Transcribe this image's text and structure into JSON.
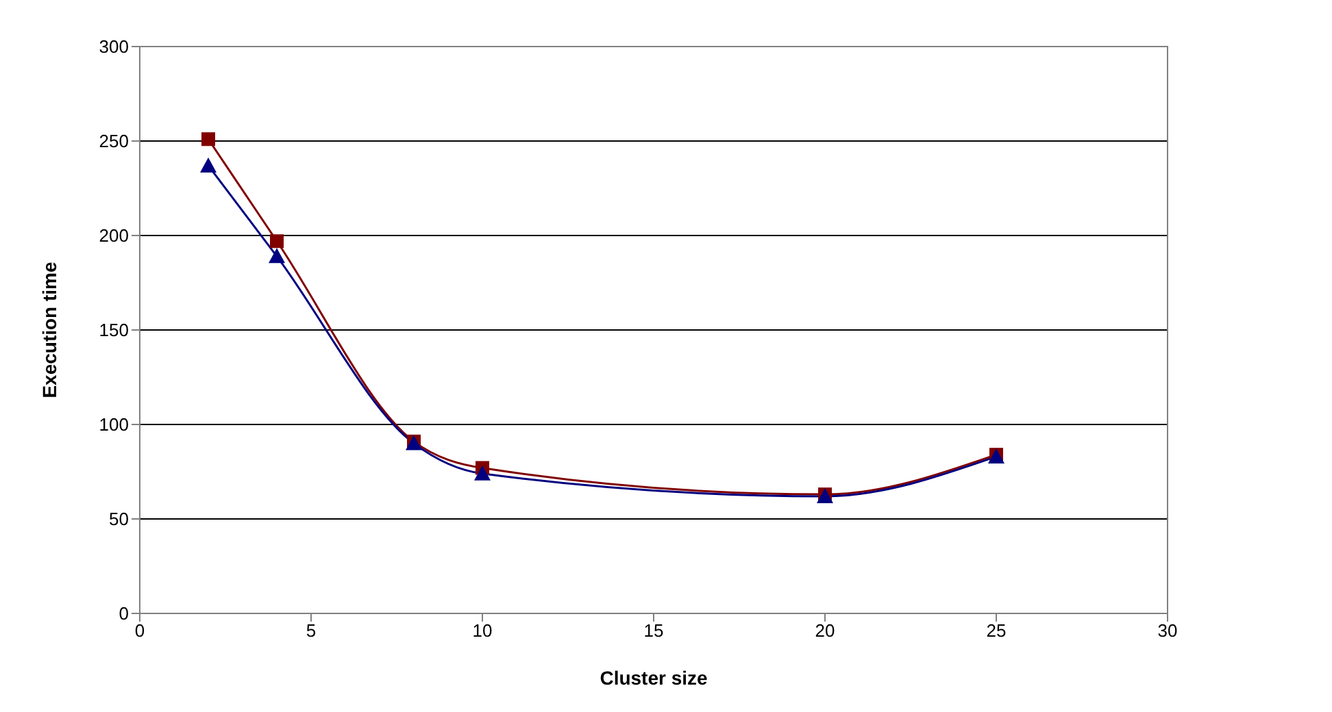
{
  "chart_data": {
    "type": "line",
    "xlabel": "Cluster size",
    "ylabel": "Execution time",
    "x": [
      2,
      4,
      8,
      10,
      20,
      25
    ],
    "series": [
      {
        "color": "#000080",
        "marker": "triangle",
        "values": [
          237,
          189,
          90,
          74,
          62,
          83
        ]
      },
      {
        "color": "#800000",
        "marker": "square",
        "values": [
          251,
          197,
          91,
          77,
          63,
          84
        ]
      }
    ],
    "xlim": [
      0,
      30
    ],
    "xticks": [
      0,
      5,
      10,
      15,
      20,
      25,
      30
    ],
    "ylim": [
      0,
      300
    ],
    "yticks": [
      0,
      50,
      100,
      150,
      200,
      250,
      300
    ],
    "grid": "y",
    "legend": false
  }
}
